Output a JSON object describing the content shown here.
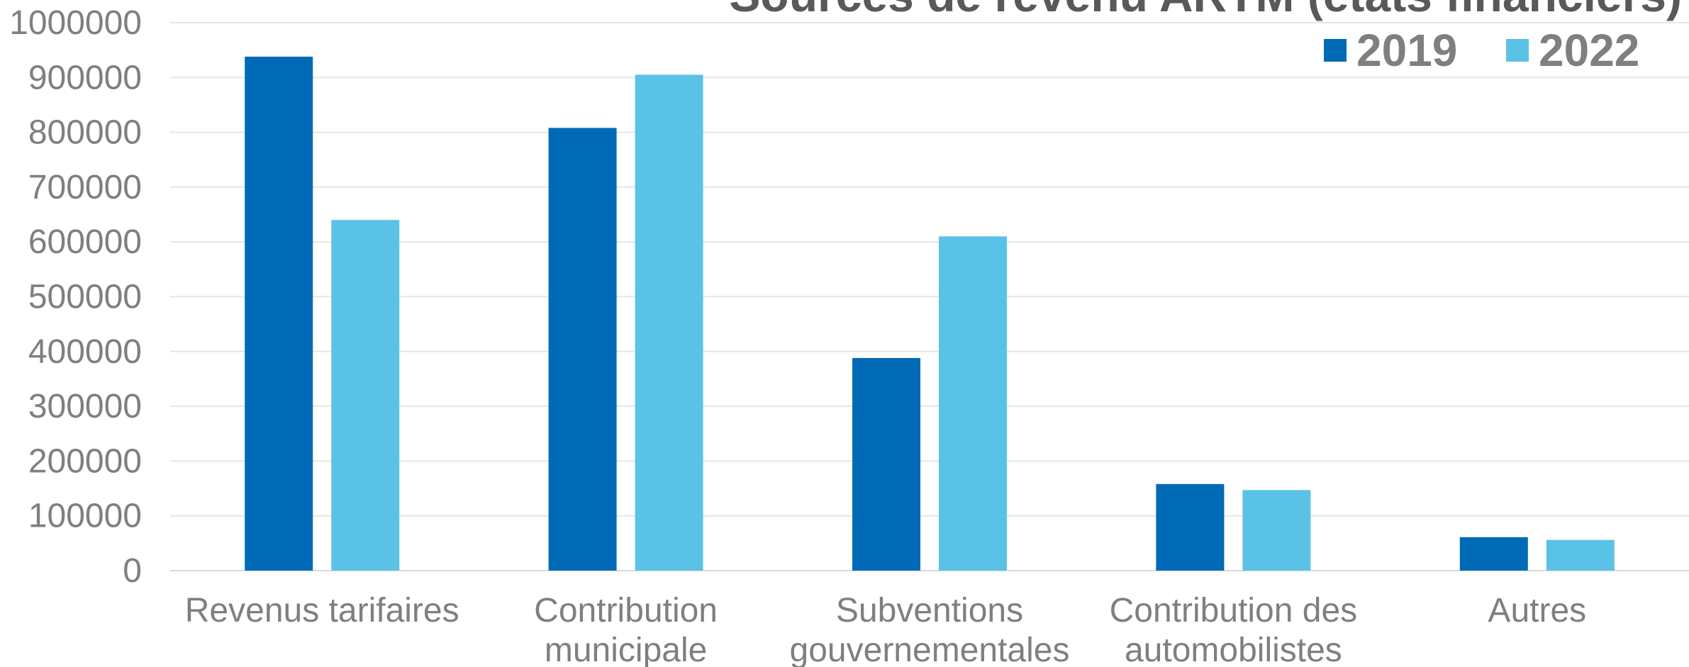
{
  "chart_data": {
    "type": "bar",
    "title": "Sources de revenu ARTM (états financiers)",
    "xlabel": "",
    "ylabel": "",
    "ylim": [
      0,
      1000000
    ],
    "yticks": [
      "0",
      "100000",
      "200000",
      "300000",
      "400000",
      "500000",
      "600000",
      "700000",
      "800000",
      "900000",
      "1000000"
    ],
    "categories": [
      [
        "Revenus tarifaires"
      ],
      [
        "Contribution",
        "municipale"
      ],
      [
        "Subventions",
        "gouvernementales"
      ],
      [
        "Contribution des",
        "automobilistes"
      ],
      [
        "Autres"
      ]
    ],
    "series": [
      {
        "name": "2019",
        "color": "#006ab6",
        "values": [
          938000,
          808000,
          388000,
          158000,
          61000
        ]
      },
      {
        "name": "2022",
        "color": "#5bc2e7",
        "values": [
          640000,
          905000,
          610000,
          147000,
          56000
        ]
      }
    ],
    "grid": true,
    "legend_position": "top-right"
  }
}
